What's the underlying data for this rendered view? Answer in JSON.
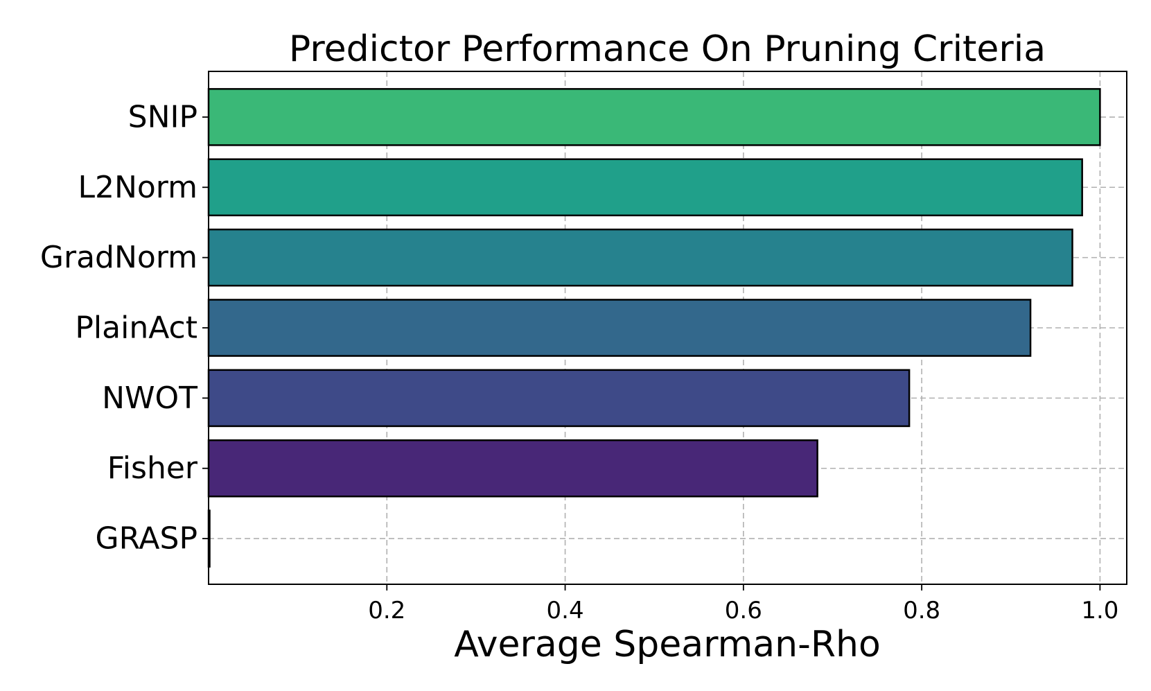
{
  "chart_data": {
    "type": "bar",
    "orientation": "horizontal",
    "title": "Predictor Performance On Pruning Criteria",
    "xlabel": "Average Spearman-Rho",
    "ylabel": "",
    "categories": [
      "SNIP",
      "L2Norm",
      "GradNorm",
      "PlainAct",
      "NWOT",
      "Fisher",
      "GRASP"
    ],
    "values": [
      1.0,
      0.98,
      0.969,
      0.922,
      0.786,
      0.683,
      0.0
    ],
    "colors": [
      "#3ab877",
      "#20a08a",
      "#26828e",
      "#33688c",
      "#3e4a88",
      "#482777",
      "#440154"
    ],
    "xlim": [
      0.0,
      1.03
    ],
    "xticks": [
      "0.2",
      "0.4",
      "0.6",
      "0.8",
      "1.0"
    ],
    "xtick_values": [
      0.2,
      0.4,
      0.6,
      0.8,
      1.0
    ],
    "grid": true,
    "legend": false
  }
}
